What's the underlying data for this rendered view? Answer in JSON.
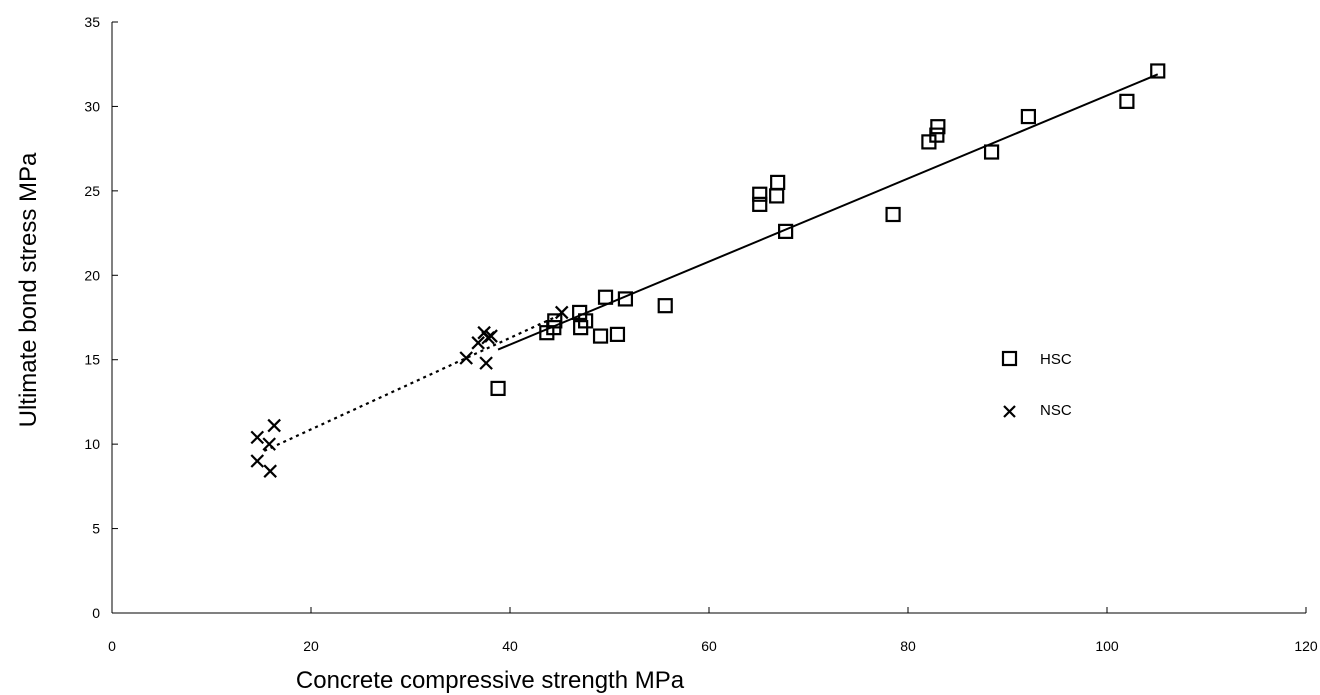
{
  "chart_data": {
    "type": "scatter",
    "xlabel": "Concrete compressive strength  MPa",
    "ylabel": "Ultimate bond stress  MPa",
    "xlim": [
      0,
      120
    ],
    "ylim": [
      0,
      35
    ],
    "xticks": [
      0,
      20,
      40,
      60,
      80,
      100,
      120
    ],
    "yticks": [
      0,
      5,
      10,
      15,
      20,
      25,
      30,
      35
    ],
    "grid": false,
    "legend_position": "right",
    "series": [
      {
        "name": "HSC",
        "marker": "square",
        "points": [
          [
            38.8,
            13.3
          ],
          [
            43.7,
            16.6
          ],
          [
            44.4,
            16.9
          ],
          [
            44.5,
            17.3
          ],
          [
            47.0,
            17.8
          ],
          [
            47.1,
            16.9
          ],
          [
            47.6,
            17.3
          ],
          [
            49.1,
            16.4
          ],
          [
            49.6,
            18.7
          ],
          [
            50.8,
            16.5
          ],
          [
            51.6,
            18.6
          ],
          [
            55.6,
            18.2
          ],
          [
            65.1,
            24.2
          ],
          [
            65.1,
            24.8
          ],
          [
            66.8,
            24.7
          ],
          [
            66.9,
            25.5
          ],
          [
            67.7,
            22.6
          ],
          [
            78.5,
            23.6
          ],
          [
            82.1,
            27.9
          ],
          [
            82.9,
            28.3
          ],
          [
            83.0,
            28.8
          ],
          [
            88.4,
            27.3
          ],
          [
            92.1,
            29.4
          ],
          [
            102.0,
            30.3
          ],
          [
            105.1,
            32.1
          ]
        ],
        "trendline": {
          "style": "solid",
          "from": [
            38.8,
            15.6
          ],
          "to": [
            105.1,
            31.9
          ]
        }
      },
      {
        "name": "NSC",
        "marker": "x",
        "points": [
          [
            14.6,
            10.4
          ],
          [
            14.6,
            9.0
          ],
          [
            15.8,
            10.0
          ],
          [
            15.9,
            8.4
          ],
          [
            16.3,
            11.1
          ],
          [
            35.6,
            15.1
          ],
          [
            36.8,
            16.0
          ],
          [
            37.4,
            16.6
          ],
          [
            37.6,
            14.8
          ],
          [
            37.8,
            16.3
          ],
          [
            38.1,
            16.4
          ],
          [
            45.2,
            17.8
          ]
        ],
        "trendline": {
          "style": "dotted",
          "from": [
            15.3,
            9.6
          ],
          "to": [
            45.2,
            17.7
          ]
        }
      }
    ]
  },
  "colors": {
    "axis": "#000000",
    "marker": "#000000",
    "background": "#ffffff"
  }
}
